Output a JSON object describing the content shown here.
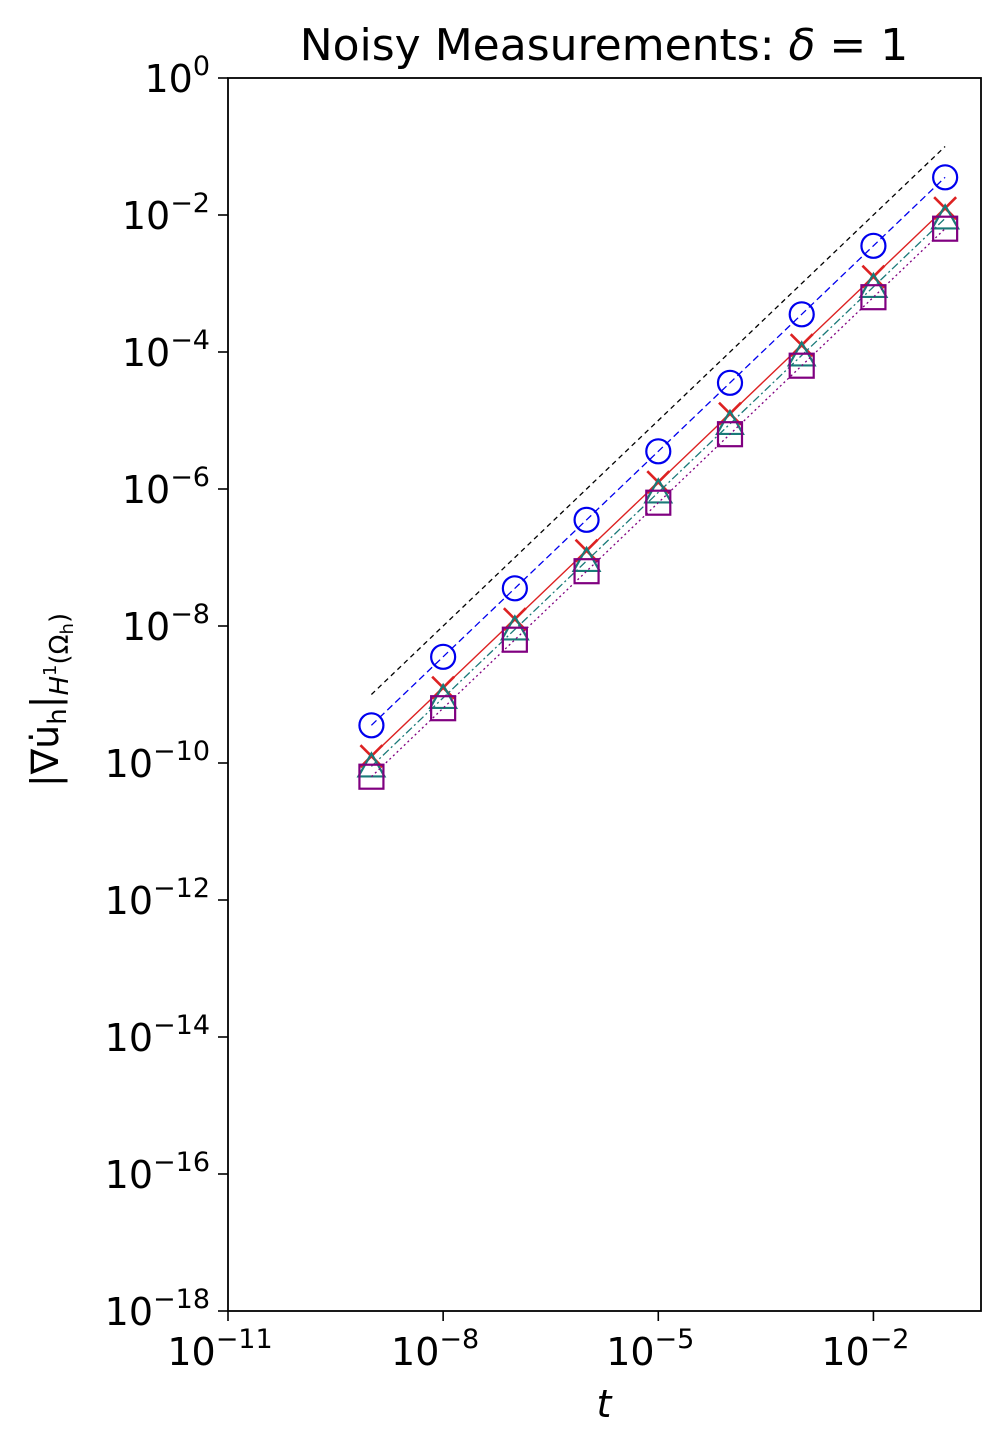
{
  "chart_data": {
    "type": "line",
    "title": "Noisy Measurements: ",
    "title_symbol": "δ",
    "title_rhs": " = 1",
    "xlabel": "t",
    "ylabel_main": "|∇u̇",
    "ylabel_sub_h": "h",
    "ylabel_bar": "|",
    "ylabel_norm": "H",
    "ylabel_norm_sup": "1",
    "ylabel_domain": "(Ω",
    "ylabel_domain_sub": "h",
    "ylabel_close": ")",
    "x_scale": "log",
    "y_scale": "log",
    "xlim_exponents": [
      -11,
      -0.5
    ],
    "ylim_exponents": [
      -18,
      0
    ],
    "x_ticks": [
      {
        "base": "10",
        "exp": "−11",
        "value": -11
      },
      {
        "base": "10",
        "exp": "−8",
        "value": -8
      },
      {
        "base": "10",
        "exp": "−5",
        "value": -5
      },
      {
        "base": "10",
        "exp": "−2",
        "value": -2
      }
    ],
    "y_ticks": [
      {
        "base": "10",
        "exp": "0",
        "value": 0
      },
      {
        "base": "10",
        "exp": "−2",
        "value": -2
      },
      {
        "base": "10",
        "exp": "−4",
        "value": -4
      },
      {
        "base": "10",
        "exp": "−6",
        "value": -6
      },
      {
        "base": "10",
        "exp": "−8",
        "value": -8
      },
      {
        "base": "10",
        "exp": "−10",
        "value": -10
      },
      {
        "base": "10",
        "exp": "−12",
        "value": -12
      },
      {
        "base": "10",
        "exp": "−14",
        "value": -14
      },
      {
        "base": "10",
        "exp": "−16",
        "value": -16
      },
      {
        "base": "10",
        "exp": "−18",
        "value": -18
      }
    ],
    "x_log10": [
      -9,
      -8,
      -7,
      -6,
      -5,
      -4,
      -3,
      -2,
      -1
    ],
    "series": [
      {
        "key": "reference",
        "color": "#000000",
        "dash": "5,4",
        "width": 1.3,
        "marker": "none",
        "x_log10": [
          -9,
          -1
        ],
        "y_log10": [
          -9,
          -1
        ]
      },
      {
        "key": "circle",
        "color": "#0000ee",
        "dash": "7,4",
        "width": 1.3,
        "marker": "circle",
        "y_log10": [
          -9.45,
          -8.45,
          -7.45,
          -6.45,
          -5.45,
          -4.45,
          -3.45,
          -2.45,
          -1.45
        ]
      },
      {
        "key": "cross",
        "color": "#dd2222",
        "dash": "",
        "width": 1.4,
        "marker": "x",
        "y_log10": [
          -9.9,
          -8.9,
          -7.9,
          -6.9,
          -5.9,
          -4.9,
          -3.9,
          -2.9,
          -1.9
        ]
      },
      {
        "key": "triangle",
        "color": "#1a7a78",
        "dash": "8,3,2,3",
        "width": 1.3,
        "marker": "triangle",
        "y_log10": [
          -10.05,
          -9.05,
          -8.05,
          -7.05,
          -6.05,
          -5.05,
          -4.05,
          -3.05,
          -2.05
        ]
      },
      {
        "key": "square",
        "color": "#800080",
        "dash": "2,3",
        "width": 1.3,
        "marker": "square",
        "y_log10": [
          -10.2,
          -9.2,
          -8.2,
          -7.2,
          -6.2,
          -5.2,
          -4.2,
          -3.2,
          -2.2
        ]
      }
    ],
    "grid": false,
    "legend": "none"
  }
}
